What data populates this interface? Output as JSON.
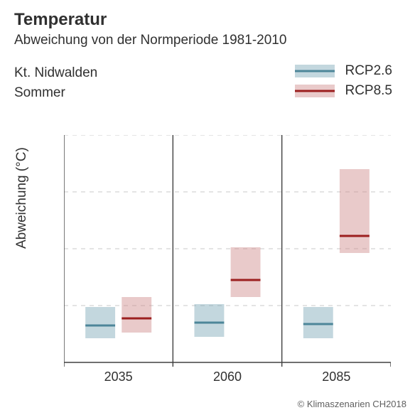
{
  "header": {
    "title": "Temperatur",
    "subtitle": "Abweichung von der Normperiode 1981-2010",
    "meta_region": "Kt. Nidwalden",
    "meta_season": "Sommer"
  },
  "legend": {
    "items": [
      {
        "label": "RCP2.6",
        "box_color": "#7ba7b5",
        "line_color": "#4d8699"
      },
      {
        "label": "RCP8.5",
        "box_color": "#cf8a8a",
        "line_color": "#9c1f1f"
      }
    ]
  },
  "chart": {
    "type": "boxrange",
    "ylabel": "Abweichung (°C)",
    "ylim": [
      0,
      8
    ],
    "yticks": [
      0,
      2,
      4,
      6,
      8
    ],
    "box_opacity": 0.45,
    "median_line_width": 3,
    "grid_color": "#c8c8c8",
    "background_color": "#ffffff",
    "panel_separator_color": "#404040",
    "panels": [
      {
        "xlabel": "2035",
        "series": [
          {
            "scenario": "RCP2.6",
            "low": 0.85,
            "median": 1.3,
            "high": 1.95,
            "box_color": "#7ba7b5",
            "line_color": "#4d8699"
          },
          {
            "scenario": "RCP8.5",
            "low": 1.05,
            "median": 1.55,
            "high": 2.3,
            "box_color": "#cf8a8a",
            "line_color": "#9c1f1f"
          }
        ]
      },
      {
        "xlabel": "2060",
        "series": [
          {
            "scenario": "RCP2.6",
            "low": 0.9,
            "median": 1.4,
            "high": 2.05,
            "box_color": "#7ba7b5",
            "line_color": "#4d8699"
          },
          {
            "scenario": "RCP8.5",
            "low": 2.3,
            "median": 2.9,
            "high": 4.05,
            "box_color": "#cf8a8a",
            "line_color": "#9c1f1f"
          }
        ]
      },
      {
        "xlabel": "2085",
        "series": [
          {
            "scenario": "RCP2.6",
            "low": 0.85,
            "median": 1.35,
            "high": 1.95,
            "box_color": "#7ba7b5",
            "line_color": "#4d8699"
          },
          {
            "scenario": "RCP8.5",
            "low": 3.85,
            "median": 4.45,
            "high": 6.8,
            "box_color": "#cf8a8a",
            "line_color": "#9c1f1f"
          }
        ]
      }
    ]
  },
  "footer": {
    "copyright": "© Klimaszenarien CH2018"
  }
}
